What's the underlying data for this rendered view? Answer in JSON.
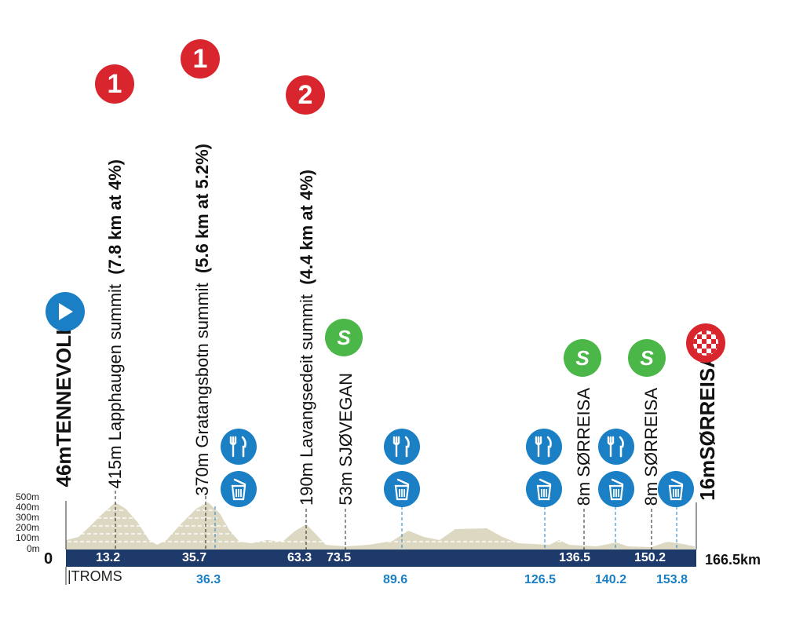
{
  "start_town": "TENNEVOLL",
  "start_alt": "46m",
  "finish_town": "SØRREISA",
  "finish_alt": "16m",
  "total": "166.5km",
  "zero": "0",
  "troms": "|TROMS",
  "altitudes": [
    "500m",
    "400m",
    "300m",
    "200m",
    "100m",
    "0m"
  ],
  "climbs": [
    {
      "alt": "415m",
      "name": "Lapphaugen summit",
      "detail": "(7.8 km at 4%)",
      "cat": "1",
      "km": "13.2"
    },
    {
      "alt": "370m",
      "name": "Gratangsbotn summit",
      "detail": "(5.6 km at 5.2%)",
      "cat": "1",
      "km": "35.7"
    },
    {
      "alt": "190m",
      "name": "Lavangsedeit summit",
      "detail": "(4.4 km at 4%)",
      "cat": "2",
      "km": "63.3"
    }
  ],
  "sprints": [
    {
      "alt": "53m",
      "name": "SJØVEGAN",
      "km": "73.5",
      "icon": "S"
    },
    {
      "alt": "8m",
      "name": "SØRREISA",
      "km": "136.5",
      "icon": "S"
    },
    {
      "alt": "8m",
      "name": "SØRREISA",
      "km": "150.2",
      "icon": "S"
    }
  ],
  "service_km": [
    "36.3",
    "89.6",
    "126.5",
    "140.2",
    "153.8"
  ],
  "icons": {
    "start": "play-icon",
    "finish": "checkered-flag-icon",
    "feed": "fork-knife-icon",
    "waste": "trash-bin-icon"
  }
}
